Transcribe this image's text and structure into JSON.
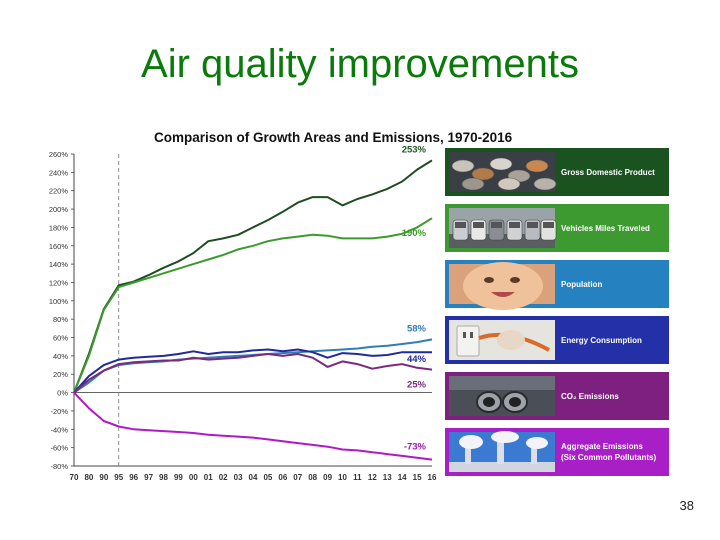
{
  "slide": {
    "title": "Air quality improvements",
    "page_number": "38"
  },
  "chart_data": {
    "type": "line",
    "title": "Comparison of Growth Areas and Emissions, 1970-2016",
    "x": [
      "70",
      "80",
      "90",
      "95",
      "96",
      "97",
      "98",
      "99",
      "00",
      "01",
      "02",
      "03",
      "04",
      "05",
      "06",
      "07",
      "08",
      "09",
      "10",
      "11",
      "12",
      "13",
      "14",
      "15",
      "16"
    ],
    "ylim": [
      -80,
      260
    ],
    "yticks": [
      -80,
      -60,
      -40,
      -20,
      0,
      20,
      40,
      60,
      80,
      100,
      120,
      140,
      160,
      180,
      200,
      220,
      240,
      260
    ],
    "ytick_suffix": "%",
    "vline_at": "95",
    "grid": false,
    "series": [
      {
        "name": "Gross Domestic Product",
        "color": "#1e4d22",
        "end_label": "253%",
        "label_color": "#1e5a22",
        "values": [
          0,
          42,
          91,
          117,
          121,
          128,
          136,
          143,
          152,
          165,
          168,
          172,
          180,
          188,
          197,
          207,
          213,
          213,
          204,
          211,
          216,
          222,
          230,
          243,
          253
        ]
      },
      {
        "name": "Vehicles Miles Traveled",
        "color": "#3c9a2c",
        "end_label": "190%",
        "label_color": "#3c9a2c",
        "values": [
          0,
          40,
          90,
          115,
          120,
          125,
          130,
          135,
          140,
          145,
          150,
          156,
          160,
          165,
          168,
          170,
          172,
          171,
          168,
          168,
          168,
          170,
          173,
          180,
          190
        ]
      },
      {
        "name": "Population",
        "color": "#2e7eb8",
        "end_label": "58%",
        "label_color": "#2e7eb8",
        "values": [
          0,
          11,
          24,
          30,
          32,
          33,
          34,
          36,
          37,
          38,
          39,
          40,
          41,
          42,
          43,
          44,
          45,
          46,
          47,
          48,
          50,
          51,
          53,
          55,
          58
        ]
      },
      {
        "name": "Energy Consumption",
        "color": "#1f2a9c",
        "end_label": "44%",
        "label_color": "#1f2a9c",
        "values": [
          0,
          18,
          30,
          36,
          38,
          39,
          40,
          42,
          45,
          42,
          44,
          44,
          46,
          47,
          45,
          47,
          44,
          38,
          43,
          42,
          40,
          41,
          44,
          44,
          44
        ]
      },
      {
        "name": "CO2 Emissions",
        "color": "#7a2a7e",
        "end_label": "25%",
        "label_color": "#7a2a7e",
        "values": [
          0,
          14,
          24,
          31,
          33,
          34,
          35,
          35,
          38,
          36,
          37,
          38,
          40,
          42,
          40,
          42,
          38,
          28,
          34,
          31,
          26,
          29,
          31,
          27,
          25
        ]
      },
      {
        "name": "Aggregate Emissions (Six Common Pollutants)",
        "color": "#b018c8",
        "end_label": "-73%",
        "label_color": "#9a1aa8",
        "values": [
          0,
          -17,
          -31,
          -37,
          -40,
          -41,
          -42,
          -43,
          -44,
          -46,
          -47,
          -48,
          -49,
          -51,
          -53,
          -55,
          -57,
          -59,
          -62,
          -63,
          -65,
          -67,
          -69,
          -71,
          -73
        ]
      }
    ]
  },
  "legend": [
    {
      "label_1": "Gross Domestic Product",
      "label_2": "",
      "color": "#1b5320",
      "icon": "coins-photo"
    },
    {
      "label_1": "Vehicles Miles Traveled",
      "label_2": "",
      "color": "#3d9a30",
      "icon": "traffic-photo"
    },
    {
      "label_1": "Population",
      "label_2": "",
      "color": "#2681c0",
      "icon": "baby-photo"
    },
    {
      "label_1": "Energy Consumption",
      "label_2": "",
      "color": "#2430a8",
      "icon": "plug-photo"
    },
    {
      "label_1": "CO₂ Emissions",
      "label_2": "",
      "color": "#7d2080",
      "icon": "exhaust-photo"
    },
    {
      "label_1": "Aggregate Emissions",
      "label_2": "(Six Common Pollutants)",
      "color": "#a81fc8",
      "icon": "smokestacks-photo"
    }
  ]
}
